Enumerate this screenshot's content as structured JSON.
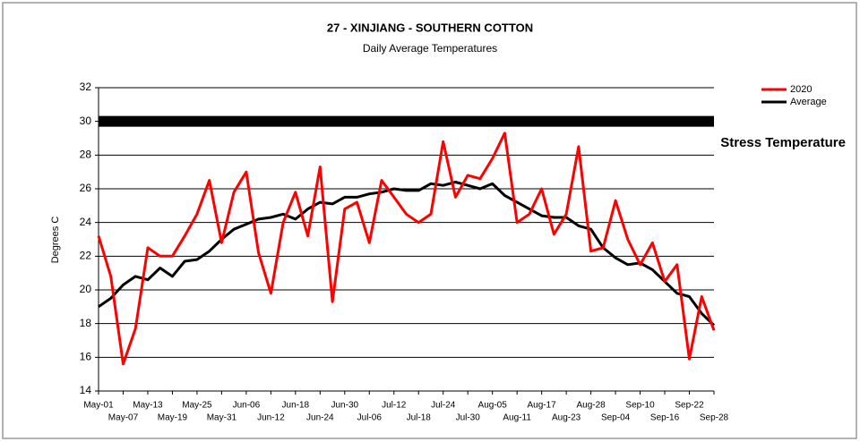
{
  "chart_data": {
    "type": "line",
    "title": "27 - XINJIANG - SOUTHERN COTTON",
    "subtitle": "Daily Average Temperatures",
    "y_label": "Degrees C",
    "categories": [
      "May-01",
      null,
      "May-07",
      null,
      "May-13",
      null,
      "May-19",
      null,
      "May-25",
      null,
      "May-31",
      null,
      "Jun-06",
      null,
      "Jun-12",
      null,
      "Jun-18",
      null,
      "Jun-24",
      null,
      "Jun-30",
      null,
      "Jul-06",
      null,
      "Jul-12",
      null,
      "Jul-18",
      null,
      "Jul-24",
      null,
      "Jul-30",
      null,
      "Aug-05",
      null,
      "Aug-11",
      null,
      "Aug-17",
      null,
      "Aug-23",
      null,
      "Aug-28",
      null,
      "Sep-04",
      null,
      "Sep-10",
      null,
      "Sep-16",
      null,
      "Sep-22",
      null,
      "Sep-28"
    ],
    "series": [
      {
        "name": "2020",
        "color": "#ff0000",
        "values": [
          23.2,
          20.8,
          15.6,
          17.7,
          22.5,
          22.0,
          22.0,
          23.2,
          24.5,
          26.5,
          22.8,
          25.8,
          27.0,
          22.2,
          19.8,
          24.0,
          25.8,
          23.2,
          27.3,
          19.3,
          24.8,
          25.2,
          22.8,
          26.5,
          25.5,
          24.5,
          24.0,
          24.5,
          28.8,
          25.5,
          26.8,
          26.6,
          27.8,
          29.3,
          24.0,
          24.5,
          26.0,
          23.3,
          24.5,
          28.5,
          22.3,
          22.5,
          25.3,
          23.0,
          21.5,
          22.8,
          20.5,
          21.5,
          15.9,
          19.6,
          17.6
        ]
      },
      {
        "name": "Average",
        "color": "#000000",
        "values": [
          19.0,
          19.5,
          20.3,
          20.8,
          20.6,
          21.3,
          20.8,
          21.7,
          21.8,
          22.3,
          23.0,
          23.6,
          23.9,
          24.2,
          24.3,
          24.5,
          24.2,
          24.8,
          25.2,
          25.1,
          25.5,
          25.5,
          25.7,
          25.8,
          26.0,
          25.9,
          25.9,
          26.3,
          26.2,
          26.4,
          26.2,
          26.0,
          26.3,
          25.6,
          25.2,
          24.8,
          24.4,
          24.3,
          24.3,
          23.8,
          23.6,
          22.5,
          21.9,
          21.5,
          21.6,
          21.2,
          20.5,
          19.8,
          19.6,
          18.6,
          17.9
        ]
      }
    ],
    "threshold": {
      "label": "Stress Temperature",
      "value": 30,
      "color": "#000000"
    },
    "ylim": [
      14,
      32
    ],
    "yticks": [
      14,
      16,
      18,
      20,
      22,
      24,
      26,
      28,
      30,
      32
    ],
    "grid": true,
    "legend": "top-right"
  }
}
